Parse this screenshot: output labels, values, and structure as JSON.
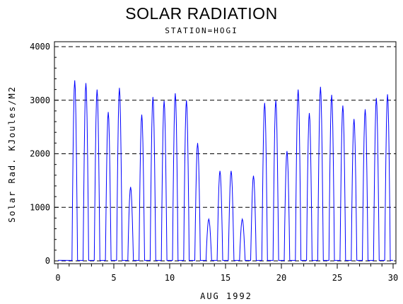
{
  "chart_data": {
    "type": "line",
    "title": "SOLAR RADIATION",
    "subtitle": "STATION=HOGI",
    "xlabel": "AUG 1992",
    "ylabel": "Solar Rad. KJoules/M2",
    "xlim": [
      0,
      30
    ],
    "ylim": [
      0,
      4000
    ],
    "xticks": [
      0,
      5,
      10,
      15,
      20,
      25,
      30
    ],
    "yticks": [
      0,
      1000,
      2000,
      3000,
      4000
    ],
    "ygrid_dashed": [
      1000,
      2000,
      3000,
      4000
    ],
    "series": [
      {
        "color": "#0000ff",
        "daily_peaks": [
          {
            "day": 1,
            "peak": 3370
          },
          {
            "day": 2,
            "peak": 3320
          },
          {
            "day": 3,
            "peak": 3200
          },
          {
            "day": 4,
            "peak": 2780
          },
          {
            "day": 5,
            "peak": 3230
          },
          {
            "day": 6,
            "peak": 1380
          },
          {
            "day": 7,
            "peak": 2730
          },
          {
            "day": 8,
            "peak": 3060
          },
          {
            "day": 9,
            "peak": 2990
          },
          {
            "day": 10,
            "peak": 3130
          },
          {
            "day": 11,
            "peak": 3000
          },
          {
            "day": 12,
            "peak": 2200
          },
          {
            "day": 13,
            "peak": 780
          },
          {
            "day": 14,
            "peak": 1680
          },
          {
            "day": 15,
            "peak": 1680
          },
          {
            "day": 16,
            "peak": 780
          },
          {
            "day": 17,
            "peak": 1590
          },
          {
            "day": 18,
            "peak": 2950
          },
          {
            "day": 19,
            "peak": 3000
          },
          {
            "day": 20,
            "peak": 2050
          },
          {
            "day": 21,
            "peak": 3200
          },
          {
            "day": 22,
            "peak": 2760
          },
          {
            "day": 23,
            "peak": 3250
          },
          {
            "day": 24,
            "peak": 3100
          },
          {
            "day": 25,
            "peak": 2900
          },
          {
            "day": 26,
            "peak": 2650
          },
          {
            "day": 27,
            "peak": 2830
          },
          {
            "day": 28,
            "peak": 3040
          },
          {
            "day": 29,
            "peak": 3110
          }
        ]
      }
    ]
  }
}
